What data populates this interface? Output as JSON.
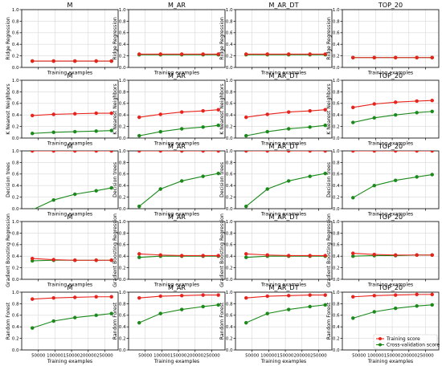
{
  "colors": {
    "training": "#e8231c",
    "cv": "#1b8a1b",
    "grid": "#d8d8d8",
    "axis": "#000000"
  },
  "chart_data": {
    "type": "line",
    "layout": "5x4 grid of learning curves",
    "xlabel": "Training examples",
    "x": [
      32000,
      96000,
      160000,
      224000,
      270000
    ],
    "x_ticks": [
      50000,
      100000,
      150000,
      200000,
      250000
    ],
    "x_tick_labels": [
      "50000",
      "100000",
      "150000",
      "200000",
      "250000"
    ],
    "xlim": [
      0,
      290000
    ],
    "ylim": [
      0,
      1.0
    ],
    "y_ticks": [
      0.0,
      0.2,
      0.4,
      0.6,
      0.8,
      1.0
    ],
    "y_tick_labels": [
      "0.0",
      "0.2",
      "0.4",
      "0.6",
      "0.8",
      "1.0"
    ],
    "grid": true,
    "legend": {
      "placement": "lower-right of bottom-right panel",
      "entries": [
        {
          "label": "Training score",
          "color": "#e8231c"
        },
        {
          "label": "Cross-validation score",
          "color": "#1b8a1b"
        }
      ]
    },
    "columns": [
      "M",
      "M_AR",
      "M_AR_DT",
      "TOP_20"
    ],
    "rows": [
      {
        "ylabel": "Ridge Regression",
        "panels": [
          {
            "training": [
              0.11,
              0.11,
              0.11,
              0.11,
              0.11
            ],
            "cv": [
              0.11,
              0.11,
              0.11,
              0.11,
              0.11
            ]
          },
          {
            "training": [
              0.23,
              0.23,
              0.23,
              0.23,
              0.23
            ],
            "cv": [
              0.22,
              0.22,
              0.22,
              0.22,
              0.22
            ]
          },
          {
            "training": [
              0.23,
              0.23,
              0.23,
              0.23,
              0.23
            ],
            "cv": [
              0.22,
              0.22,
              0.22,
              0.22,
              0.22
            ]
          },
          {
            "training": [
              0.17,
              0.17,
              0.17,
              0.17,
              0.17
            ],
            "cv": [
              0.17,
              0.17,
              0.17,
              0.17,
              0.17
            ]
          }
        ]
      },
      {
        "ylabel": "K Nearest Neighbors",
        "panels": [
          {
            "training": [
              0.39,
              0.41,
              0.42,
              0.43,
              0.43
            ],
            "cv": [
              0.08,
              0.1,
              0.11,
              0.12,
              0.13
            ]
          },
          {
            "training": [
              0.36,
              0.41,
              0.45,
              0.47,
              0.49
            ],
            "cv": [
              0.04,
              0.11,
              0.16,
              0.19,
              0.22
            ]
          },
          {
            "training": [
              0.36,
              0.41,
              0.45,
              0.47,
              0.49
            ],
            "cv": [
              0.04,
              0.11,
              0.16,
              0.19,
              0.22
            ]
          },
          {
            "training": [
              0.53,
              0.59,
              0.62,
              0.64,
              0.65
            ],
            "cv": [
              0.27,
              0.35,
              0.4,
              0.44,
              0.46
            ]
          }
        ]
      },
      {
        "ylabel": "Decision trees",
        "panels": [
          {
            "training": [
              1.0,
              1.0,
              1.0,
              1.0,
              1.0
            ],
            "cv": [
              -0.02,
              0.15,
              0.25,
              0.31,
              0.36
            ]
          },
          {
            "training": [
              1.0,
              1.0,
              1.0,
              1.0,
              1.0
            ],
            "cv": [
              0.04,
              0.34,
              0.48,
              0.56,
              0.61
            ]
          },
          {
            "training": [
              1.0,
              1.0,
              1.0,
              1.0,
              1.0
            ],
            "cv": [
              0.04,
              0.34,
              0.48,
              0.56,
              0.61
            ]
          },
          {
            "training": [
              1.0,
              1.0,
              1.0,
              1.0,
              1.0
            ],
            "cv": [
              0.19,
              0.4,
              0.49,
              0.55,
              0.59
            ]
          }
        ]
      },
      {
        "ylabel": "Gradient Boosting Regression",
        "panels": [
          {
            "training": [
              0.36,
              0.34,
              0.33,
              0.33,
              0.33
            ],
            "cv": [
              0.32,
              0.33,
              0.33,
              0.33,
              0.33
            ]
          },
          {
            "training": [
              0.44,
              0.42,
              0.41,
              0.41,
              0.41
            ],
            "cv": [
              0.38,
              0.4,
              0.4,
              0.4,
              0.4
            ]
          },
          {
            "training": [
              0.44,
              0.42,
              0.41,
              0.41,
              0.41
            ],
            "cv": [
              0.38,
              0.4,
              0.4,
              0.4,
              0.4
            ]
          },
          {
            "training": [
              0.45,
              0.43,
              0.42,
              0.42,
              0.42
            ],
            "cv": [
              0.4,
              0.41,
              0.41,
              0.42,
              0.42
            ]
          }
        ]
      },
      {
        "ylabel": "Random Forest",
        "panels": [
          {
            "training": [
              0.88,
              0.9,
              0.91,
              0.92,
              0.92
            ],
            "cv": [
              0.38,
              0.5,
              0.56,
              0.6,
              0.63
            ]
          },
          {
            "training": [
              0.9,
              0.93,
              0.94,
              0.95,
              0.95
            ],
            "cv": [
              0.47,
              0.63,
              0.7,
              0.75,
              0.78
            ]
          },
          {
            "training": [
              0.9,
              0.93,
              0.94,
              0.95,
              0.95
            ],
            "cv": [
              0.47,
              0.63,
              0.7,
              0.75,
              0.78
            ]
          },
          {
            "training": [
              0.92,
              0.94,
              0.95,
              0.96,
              0.96
            ],
            "cv": [
              0.55,
              0.66,
              0.72,
              0.76,
              0.78
            ]
          }
        ]
      }
    ]
  }
}
